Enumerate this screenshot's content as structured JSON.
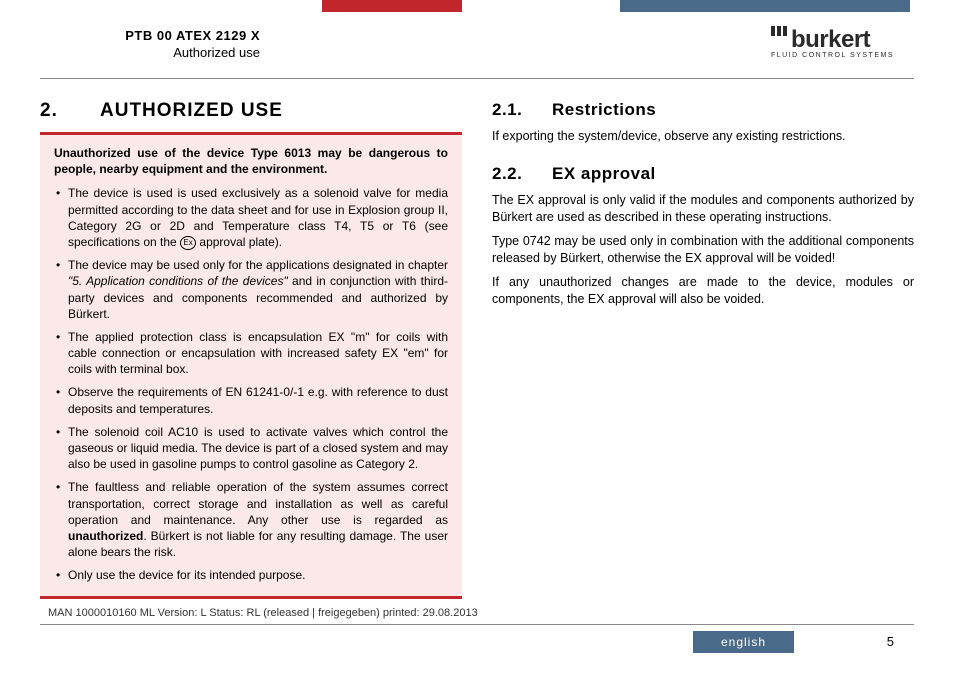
{
  "header": {
    "doc_id": "PTB 00 ATEX 2129 X",
    "section": "Authorized use",
    "logo_name": "burkert",
    "logo_tagline": "FLUID CONTROL SYSTEMS"
  },
  "left_col": {
    "h2_num": "2.",
    "h2_title": "AUTHORIZED USE",
    "warning_lead": "Unauthorized use of the device Type 6013 may be dangerous to people, nearby equipment and the environment.",
    "bullets": {
      "b1_pre": "The device is used is used exclusively as a solenoid valve for media permitted according to the data sheet and for use in Explosion group II, Category 2G or 2D and Temperature class T4, T5 or T6 (see specifications on the ",
      "b1_mark": "Ex",
      "b1_post": " approval plate).",
      "b2_pre": "The device may be used only for the applications designated in chapter ",
      "b2_italic": "\"5. Application conditions of the devices\"",
      "b2_post": " and in conjunction with third-party devices and components recommended and authorized by Bürkert.",
      "b3": "The applied protection class is encapsulation EX \"m\" for coils with cable connection or encapsulation with increased safety EX \"em\" for coils with terminal box.",
      "b4": "Observe the requirements of EN 61241-0/-1 e.g. with reference to dust deposits and temperatures.",
      "b5": "The solenoid coil AC10 is used to activate valves which control the gaseous or liquid media. The device is part of a closed system and may also be used in gasoline pumps to control gasoline as Category 2.",
      "b6_pre": "The faultless and reliable operation of the system assumes correct transportation, correct storage and installation as well as careful operation and maintenance. Any other use is regarded as ",
      "b6_bold": "unauthorized",
      "b6_post": ". Bürkert is not liable for any resulting damage. The user alone bears the risk.",
      "b7": "Only use the device for its intended purpose."
    }
  },
  "right_col": {
    "s1_num": "2.1.",
    "s1_title": "Restrictions",
    "s1_p1": "If exporting the system/device, observe any existing restrictions.",
    "s2_num": "2.2.",
    "s2_title": "EX approval",
    "s2_p1": "The EX approval is only valid if the modules and components authorized by Bürkert are used as described in these operating instructions.",
    "s2_p2": "Type 0742 may be used only in combination with the additional components released by Bürkert, otherwise the EX approval will be voided!",
    "s2_p3": "If any unauthorized changes are made to the device, modules or components, the EX approval will also be voided."
  },
  "footer": {
    "meta": "MAN  1000010160  ML   Version: L Status: RL (released | freigegeben)   printed: 29.08.2013",
    "lang": "english",
    "page": "5"
  }
}
